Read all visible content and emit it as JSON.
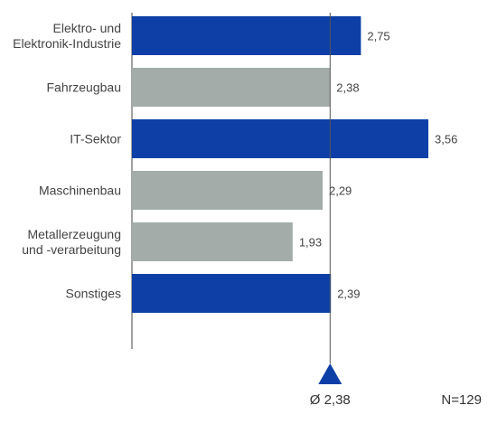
{
  "chart_data": {
    "type": "bar",
    "orientation": "horizontal",
    "categories": [
      [
        "Elektro- und",
        "Elektronik-Industrie"
      ],
      [
        "Fahrzeugbau"
      ],
      [
        "IT-Sektor"
      ],
      [
        "Maschinenbau"
      ],
      [
        "Metallerzeugung",
        "und -verarbeitung"
      ],
      [
        "Sonstiges"
      ]
    ],
    "values": [
      2.75,
      2.38,
      3.56,
      2.29,
      1.93,
      2.39
    ],
    "value_labels": [
      "2,75",
      "2,38",
      "3,56",
      "2,29",
      "1,93",
      "2,39"
    ],
    "bar_colors": [
      "#0d3fa6",
      "#a3aca8",
      "#0d3fa6",
      "#a3aca8",
      "#a3aca8",
      "#0d3fa6"
    ],
    "average": 2.38,
    "average_label": "Ø 2,38",
    "average_marker_color": "#0d3fa6",
    "sample_size_label": "N=129",
    "xlim": [
      0,
      3.56
    ],
    "grid": false
  }
}
